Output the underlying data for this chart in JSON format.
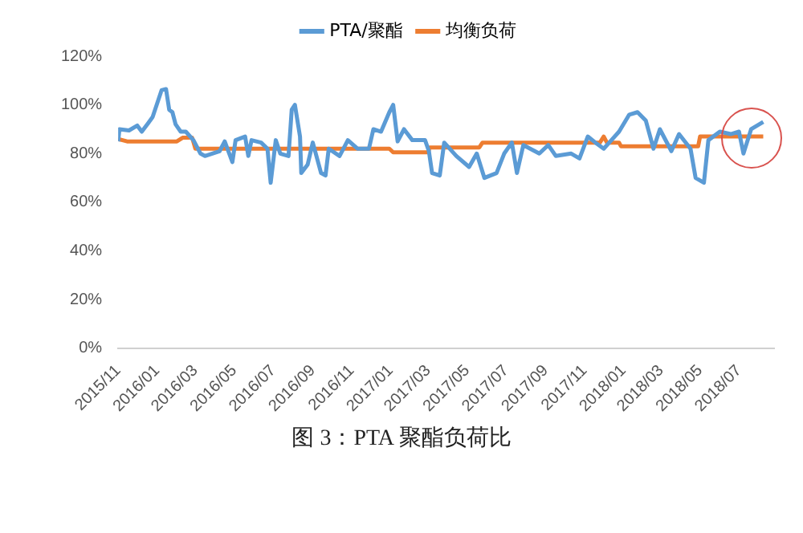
{
  "chart_data": {
    "type": "line",
    "title": "图 3：PTA 聚酯负荷比",
    "xlim": [
      "2015-11-01",
      "2018-08-25"
    ],
    "xticks": [
      {
        "value": "2015-11",
        "label": "2015/11"
      },
      {
        "value": "2016-01",
        "label": "2016/01"
      },
      {
        "value": "2016-03",
        "label": "2016/03"
      },
      {
        "value": "2016-05",
        "label": "2016/05"
      },
      {
        "value": "2016-07",
        "label": "2016/07"
      },
      {
        "value": "2016-09",
        "label": "2016/09"
      },
      {
        "value": "2016-11",
        "label": "2016/11"
      },
      {
        "value": "2017-01",
        "label": "2017/01"
      },
      {
        "value": "2017-03",
        "label": "2017/03"
      },
      {
        "value": "2017-05",
        "label": "2017/05"
      },
      {
        "value": "2017-07",
        "label": "2017/07"
      },
      {
        "value": "2017-09",
        "label": "2017/09"
      },
      {
        "value": "2017-11",
        "label": "2017/11"
      },
      {
        "value": "2018-01",
        "label": "2018/01"
      },
      {
        "value": "2018-03",
        "label": "2018/03"
      },
      {
        "value": "2018-05",
        "label": "2018/05"
      },
      {
        "value": "2018-07",
        "label": "2018/07"
      }
    ],
    "ylim": [
      0,
      120
    ],
    "yticks": [
      {
        "value": 0,
        "label": "0%"
      },
      {
        "value": 20,
        "label": "20%"
      },
      {
        "value": 40,
        "label": "40%"
      },
      {
        "value": 60,
        "label": "60%"
      },
      {
        "value": 80,
        "label": "80%"
      },
      {
        "value": 100,
        "label": "100%"
      },
      {
        "value": 120,
        "label": "120%"
      }
    ],
    "grid": false,
    "legend": "top",
    "marker": "none",
    "line_style": "solid",
    "series": [
      {
        "name": "PTA/聚酯",
        "color": "#5b9bd5",
        "x": [
          "2015-11-01",
          "2015-11-03",
          "2015-11-18",
          "2015-12-01",
          "2015-12-08",
          "2015-12-18",
          "2015-12-25",
          "2016-01-08",
          "2016-01-15",
          "2016-01-20",
          "2016-01-25",
          "2016-01-30",
          "2016-02-07",
          "2016-02-15",
          "2016-02-27",
          "2016-03-09",
          "2016-03-16",
          "2016-04-08",
          "2016-04-16",
          "2016-04-28",
          "2016-05-03",
          "2016-05-18",
          "2016-05-23",
          "2016-05-28",
          "2016-06-12",
          "2016-06-22",
          "2016-06-27",
          "2016-07-05",
          "2016-07-12",
          "2016-07-25",
          "2016-07-30",
          "2016-08-04",
          "2016-08-12",
          "2016-08-14",
          "2016-08-24",
          "2016-09-01",
          "2016-09-14",
          "2016-09-21",
          "2016-09-26",
          "2016-10-13",
          "2016-10-26",
          "2016-11-10",
          "2016-11-28",
          "2016-12-05",
          "2016-12-17",
          "2016-12-30",
          "2017-01-05",
          "2017-01-12",
          "2017-01-22",
          "2017-02-04",
          "2017-02-24",
          "2017-03-02",
          "2017-03-07",
          "2017-03-19",
          "2017-03-26",
          "2017-04-14",
          "2017-05-04",
          "2017-05-16",
          "2017-05-28",
          "2017-06-16",
          "2017-06-28",
          "2017-07-10",
          "2017-07-18",
          "2017-07-28",
          "2017-08-22",
          "2017-09-05",
          "2017-09-17",
          "2017-10-11",
          "2017-10-24",
          "2017-11-06",
          "2017-11-18",
          "2017-12-01",
          "2017-12-13",
          "2017-12-25",
          "2018-01-10",
          "2018-01-23",
          "2018-02-05",
          "2018-02-17",
          "2018-02-27",
          "2018-03-17",
          "2018-03-29",
          "2018-04-16",
          "2018-04-24",
          "2018-05-07",
          "2018-05-14",
          "2018-06-01",
          "2018-06-18",
          "2018-07-01",
          "2018-07-08",
          "2018-07-20",
          "2018-08-08"
        ],
        "values": [
          85,
          90,
          89.5,
          91.5,
          89,
          92.5,
          95,
          106,
          106.5,
          98,
          97,
          92,
          89,
          89,
          85.5,
          80,
          79,
          81,
          85,
          76.5,
          85.5,
          87,
          79,
          85.5,
          84.5,
          82,
          68,
          85.5,
          80,
          79,
          98,
          100,
          87,
          72,
          75.5,
          84.5,
          72,
          71,
          82,
          79,
          85.5,
          82,
          82,
          90,
          89,
          97,
          100,
          85,
          90,
          85.5,
          85.5,
          81,
          72,
          71,
          84.5,
          79,
          74.5,
          80,
          70,
          72,
          80,
          84.5,
          72,
          83.5,
          80,
          83.5,
          79,
          80,
          78,
          87,
          84.5,
          82,
          85.5,
          89,
          96,
          97,
          93.5,
          82,
          90,
          81,
          88,
          82,
          70,
          68,
          85.5,
          89,
          88,
          89,
          80,
          90,
          93
        ]
      },
      {
        "name": "均衡负荷",
        "color": "#ed7d31",
        "x": [
          "2015-11-01",
          "2015-11-15",
          "2016-02-01",
          "2016-02-10",
          "2016-02-25",
          "2016-03-01",
          "2016-12-30",
          "2017-01-05",
          "2017-03-01",
          "2017-03-03",
          "2017-05-20",
          "2017-05-25",
          "2017-11-25",
          "2017-12-01",
          "2017-12-06",
          "2017-12-25",
          "2017-12-28",
          "2018-04-28",
          "2018-05-01",
          "2018-08-08"
        ],
        "values": [
          86,
          85,
          85,
          86.5,
          86.5,
          82,
          82,
          80.5,
          80.5,
          82.5,
          82.5,
          84.5,
          84.5,
          87,
          84.5,
          84.5,
          83,
          83,
          87,
          87
        ]
      }
    ]
  }
}
